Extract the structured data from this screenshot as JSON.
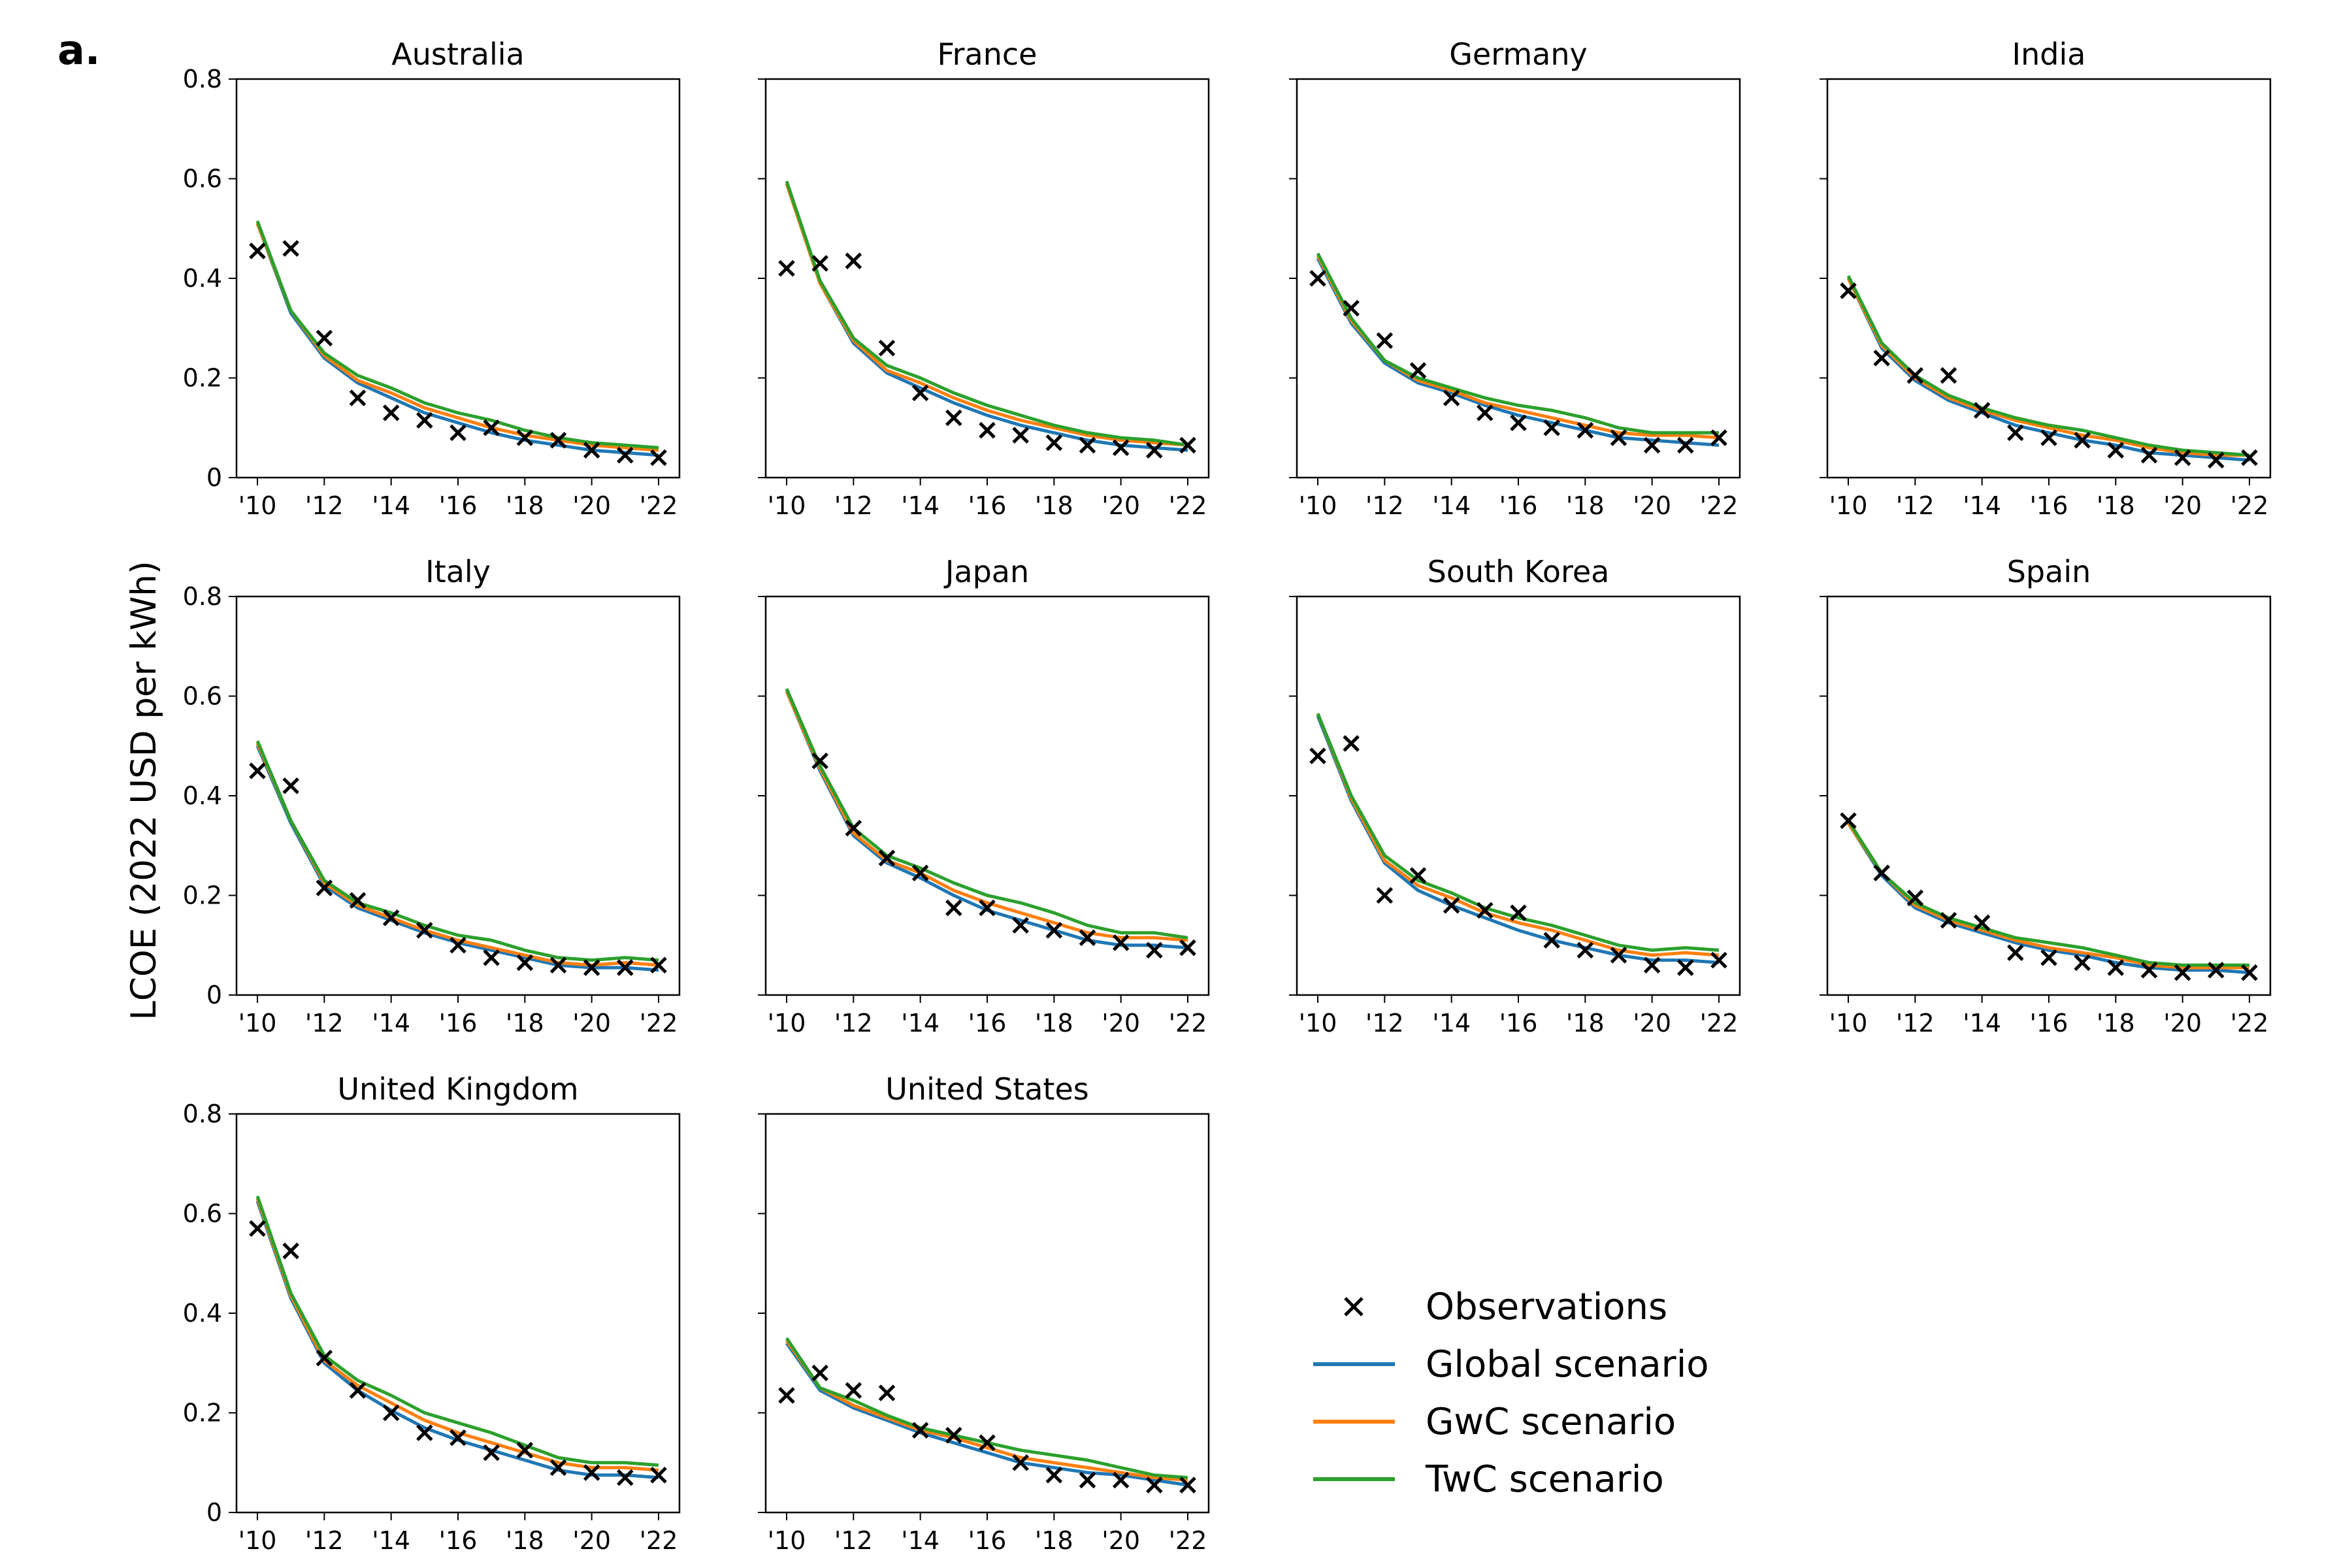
{
  "figure": {
    "panel_letter": "a.",
    "ylabel": "LCOE (2022 USD per kWh)"
  },
  "legend": [
    {
      "key": "observations",
      "label": "Observations",
      "marker": "x",
      "color": "#000000"
    },
    {
      "key": "global",
      "label": "Global scenario",
      "color": "#1f77b4"
    },
    {
      "key": "gwc",
      "label": "GwC scenario",
      "color": "#ff7f0e"
    },
    {
      "key": "twc",
      "label": "TwC scenario",
      "color": "#2ca02c"
    }
  ],
  "chart_data": {
    "type": "line",
    "x": [
      2010,
      2011,
      2012,
      2013,
      2014,
      2015,
      2016,
      2017,
      2018,
      2019,
      2020,
      2021,
      2022
    ],
    "x_tick_labels": [
      "'10",
      "'12",
      "'14",
      "'16",
      "'18",
      "'20",
      "'22"
    ],
    "x_tick_values": [
      2010,
      2012,
      2014,
      2016,
      2018,
      2020,
      2022
    ],
    "ylim": [
      0,
      0.8
    ],
    "y_ticks": [
      0,
      0.2,
      0.4,
      0.6,
      0.8
    ],
    "y_tick_labels": [
      "0",
      "0.2",
      "0.4",
      "0.6",
      "0.8"
    ],
    "ylabel": "LCOE (2022 USD per kWh)",
    "panels": [
      {
        "title": "Australia",
        "observations": [
          0.455,
          0.46,
          0.28,
          0.16,
          0.13,
          0.115,
          0.09,
          0.1,
          0.08,
          0.075,
          0.055,
          0.045,
          0.04
        ],
        "global": [
          0.51,
          0.33,
          0.24,
          0.19,
          0.16,
          0.13,
          0.11,
          0.09,
          0.075,
          0.065,
          0.055,
          0.05,
          0.045
        ],
        "gwc": [
          0.51,
          0.335,
          0.245,
          0.195,
          0.17,
          0.14,
          0.12,
          0.1,
          0.085,
          0.075,
          0.065,
          0.06,
          0.055
        ],
        "twc": [
          0.515,
          0.335,
          0.25,
          0.205,
          0.18,
          0.15,
          0.13,
          0.115,
          0.095,
          0.08,
          0.07,
          0.065,
          0.06
        ]
      },
      {
        "title": "France",
        "observations": [
          0.42,
          0.43,
          0.435,
          0.26,
          0.17,
          0.12,
          0.095,
          0.085,
          0.07,
          0.065,
          0.06,
          0.055,
          0.065
        ],
        "global": [
          0.59,
          0.39,
          0.27,
          0.21,
          0.18,
          0.15,
          0.125,
          0.105,
          0.09,
          0.075,
          0.065,
          0.06,
          0.055
        ],
        "gwc": [
          0.59,
          0.39,
          0.275,
          0.215,
          0.19,
          0.16,
          0.135,
          0.115,
          0.1,
          0.085,
          0.075,
          0.07,
          0.065
        ],
        "twc": [
          0.595,
          0.395,
          0.28,
          0.225,
          0.2,
          0.17,
          0.145,
          0.125,
          0.105,
          0.09,
          0.08,
          0.075,
          0.065
        ]
      },
      {
        "title": "Germany",
        "observations": [
          0.4,
          0.34,
          0.275,
          0.215,
          0.16,
          0.13,
          0.11,
          0.1,
          0.095,
          0.08,
          0.065,
          0.065,
          0.08
        ],
        "global": [
          0.44,
          0.31,
          0.23,
          0.19,
          0.17,
          0.145,
          0.125,
          0.11,
          0.095,
          0.08,
          0.075,
          0.07,
          0.065
        ],
        "gwc": [
          0.445,
          0.315,
          0.235,
          0.195,
          0.175,
          0.15,
          0.135,
          0.12,
          0.105,
          0.09,
          0.085,
          0.085,
          0.08
        ],
        "twc": [
          0.45,
          0.32,
          0.235,
          0.2,
          0.18,
          0.16,
          0.145,
          0.135,
          0.12,
          0.1,
          0.09,
          0.09,
          0.09
        ]
      },
      {
        "title": "India",
        "observations": [
          0.375,
          0.24,
          0.205,
          0.205,
          0.135,
          0.09,
          0.08,
          0.075,
          0.055,
          0.045,
          0.04,
          0.035,
          0.04
        ],
        "global": [
          0.4,
          0.26,
          0.195,
          0.155,
          0.13,
          0.105,
          0.09,
          0.075,
          0.065,
          0.05,
          0.045,
          0.04,
          0.035
        ],
        "gwc": [
          0.4,
          0.265,
          0.2,
          0.16,
          0.135,
          0.115,
          0.1,
          0.085,
          0.075,
          0.06,
          0.05,
          0.045,
          0.045
        ],
        "twc": [
          0.405,
          0.27,
          0.205,
          0.165,
          0.14,
          0.12,
          0.105,
          0.095,
          0.08,
          0.065,
          0.055,
          0.05,
          0.045
        ]
      },
      {
        "title": "Italy",
        "observations": [
          0.45,
          0.42,
          0.215,
          0.19,
          0.155,
          0.13,
          0.1,
          0.075,
          0.065,
          0.06,
          0.055,
          0.055,
          0.06
        ],
        "global": [
          0.5,
          0.345,
          0.22,
          0.175,
          0.15,
          0.125,
          0.105,
          0.09,
          0.075,
          0.06,
          0.055,
          0.055,
          0.05
        ],
        "gwc": [
          0.505,
          0.35,
          0.225,
          0.18,
          0.155,
          0.13,
          0.11,
          0.095,
          0.08,
          0.065,
          0.06,
          0.065,
          0.06
        ],
        "twc": [
          0.51,
          0.35,
          0.23,
          0.185,
          0.165,
          0.14,
          0.12,
          0.11,
          0.09,
          0.075,
          0.07,
          0.075,
          0.07
        ]
      },
      {
        "title": "Japan",
        "observations": [
          null,
          0.47,
          0.335,
          0.275,
          0.245,
          0.175,
          0.175,
          0.14,
          0.13,
          0.115,
          0.105,
          0.09,
          0.095
        ],
        "global": [
          0.61,
          0.45,
          0.32,
          0.265,
          0.235,
          0.2,
          0.17,
          0.15,
          0.13,
          0.11,
          0.1,
          0.1,
          0.095
        ],
        "gwc": [
          0.61,
          0.455,
          0.325,
          0.27,
          0.245,
          0.21,
          0.185,
          0.165,
          0.145,
          0.125,
          0.115,
          0.115,
          0.11
        ],
        "twc": [
          0.615,
          0.46,
          0.335,
          0.28,
          0.255,
          0.225,
          0.2,
          0.185,
          0.165,
          0.14,
          0.125,
          0.125,
          0.115
        ]
      },
      {
        "title": "South Korea",
        "observations": [
          0.48,
          0.505,
          0.2,
          0.24,
          0.18,
          0.17,
          0.165,
          0.11,
          0.09,
          0.08,
          0.06,
          0.055,
          0.07
        ],
        "global": [
          0.56,
          0.39,
          0.265,
          0.21,
          0.18,
          0.155,
          0.13,
          0.11,
          0.095,
          0.08,
          0.07,
          0.07,
          0.065
        ],
        "gwc": [
          0.565,
          0.395,
          0.27,
          0.22,
          0.195,
          0.165,
          0.145,
          0.13,
          0.11,
          0.09,
          0.08,
          0.085,
          0.08
        ],
        "twc": [
          0.565,
          0.4,
          0.28,
          0.23,
          0.205,
          0.175,
          0.155,
          0.14,
          0.12,
          0.1,
          0.09,
          0.095,
          0.09
        ]
      },
      {
        "title": "Spain",
        "observations": [
          0.35,
          0.245,
          0.195,
          0.15,
          0.145,
          0.085,
          0.075,
          0.065,
          0.055,
          0.05,
          0.045,
          0.05,
          0.045
        ],
        "global": [
          0.345,
          0.24,
          0.175,
          0.145,
          0.125,
          0.105,
          0.09,
          0.08,
          0.065,
          0.055,
          0.05,
          0.05,
          0.045
        ],
        "gwc": [
          0.345,
          0.245,
          0.18,
          0.15,
          0.13,
          0.11,
          0.095,
          0.085,
          0.075,
          0.06,
          0.055,
          0.055,
          0.055
        ],
        "twc": [
          0.35,
          0.245,
          0.185,
          0.155,
          0.135,
          0.115,
          0.105,
          0.095,
          0.08,
          0.065,
          0.06,
          0.06,
          0.06
        ]
      },
      {
        "title": "United Kingdom",
        "observations": [
          0.57,
          0.525,
          0.31,
          0.245,
          0.2,
          0.16,
          0.15,
          0.12,
          0.125,
          0.09,
          0.08,
          0.07,
          0.075
        ],
        "global": [
          0.625,
          0.43,
          0.3,
          0.245,
          0.205,
          0.17,
          0.145,
          0.125,
          0.105,
          0.085,
          0.075,
          0.075,
          0.07
        ],
        "gwc": [
          0.63,
          0.435,
          0.305,
          0.255,
          0.22,
          0.185,
          0.16,
          0.14,
          0.12,
          0.1,
          0.09,
          0.09,
          0.085
        ],
        "twc": [
          0.635,
          0.44,
          0.315,
          0.265,
          0.235,
          0.2,
          0.18,
          0.16,
          0.135,
          0.11,
          0.1,
          0.1,
          0.095
        ]
      },
      {
        "title": "United States",
        "observations": [
          0.235,
          0.28,
          0.245,
          0.24,
          0.165,
          0.155,
          0.14,
          0.1,
          0.075,
          0.065,
          0.065,
          0.055,
          0.055
        ],
        "global": [
          0.34,
          0.245,
          0.21,
          0.185,
          0.16,
          0.14,
          0.12,
          0.1,
          0.09,
          0.08,
          0.075,
          0.065,
          0.055
        ],
        "gwc": [
          0.345,
          0.25,
          0.215,
          0.19,
          0.165,
          0.15,
          0.13,
          0.11,
          0.1,
          0.09,
          0.08,
          0.07,
          0.065
        ],
        "twc": [
          0.35,
          0.25,
          0.225,
          0.195,
          0.17,
          0.155,
          0.14,
          0.125,
          0.115,
          0.105,
          0.09,
          0.075,
          0.07
        ]
      }
    ]
  }
}
